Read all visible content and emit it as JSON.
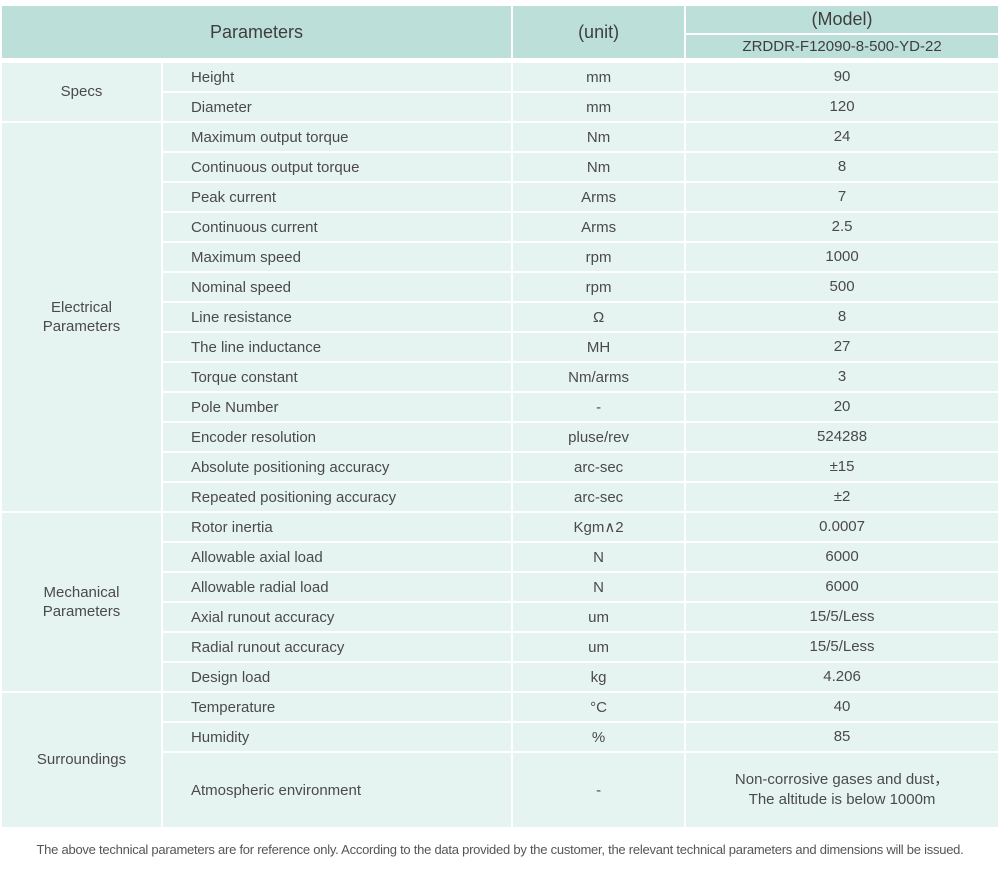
{
  "colors": {
    "header_bg": "#bce0d9",
    "row_bg": "#e6f4f1",
    "text": "#4a4a4a",
    "header_text": "#3e3e3e",
    "footnote_text": "#555555"
  },
  "table": {
    "header": {
      "parameters_label": "Parameters",
      "unit_label": "(unit)",
      "model_label": "(Model)",
      "model_value": "ZRDDR-F12090-8-500-YD-22"
    },
    "sections": [
      {
        "category": "Specs",
        "rows": [
          {
            "name": "Height",
            "unit": "mm",
            "value": "90"
          },
          {
            "name": "Diameter",
            "unit": "mm",
            "value": "120"
          }
        ]
      },
      {
        "category": "Electrical\nParameters",
        "rows": [
          {
            "name": "Maximum output torque",
            "unit": "Nm",
            "value": "24"
          },
          {
            "name": "Continuous output torque",
            "unit": "Nm",
            "value": "8"
          },
          {
            "name": "Peak current",
            "unit": "Arms",
            "value": "7"
          },
          {
            "name": "Continuous current",
            "unit": "Arms",
            "value": "2.5"
          },
          {
            "name": "Maximum speed",
            "unit": "rpm",
            "value": "1000"
          },
          {
            "name": "Nominal speed",
            "unit": "rpm",
            "value": "500"
          },
          {
            "name": "Line resistance",
            "unit": "Ω",
            "value": "8"
          },
          {
            "name": "The line inductance",
            "unit": "MH",
            "value": "27"
          },
          {
            "name": "Torque constant",
            "unit": "Nm/arms",
            "value": "3"
          },
          {
            "name": "Pole Number",
            "unit": "-",
            "value": "20"
          },
          {
            "name": "Encoder resolution",
            "unit": "pluse/rev",
            "value": "524288"
          },
          {
            "name": "Absolute positioning accuracy",
            "unit": "arc-sec",
            "value": "±15"
          },
          {
            "name": "Repeated positioning accuracy",
            "unit": "arc-sec",
            "value": "±2"
          }
        ]
      },
      {
        "category": "Mechanical\nParameters",
        "rows": [
          {
            "name": "Rotor inertia",
            "unit": "Kgm∧2",
            "value": "0.0007"
          },
          {
            "name": "Allowable axial load",
            "unit": "N",
            "value": "6000"
          },
          {
            "name": "Allowable radial load",
            "unit": "N",
            "value": "6000"
          },
          {
            "name": "Axial runout accuracy",
            "unit": "um",
            "value": "15/5/Less"
          },
          {
            "name": "Radial runout accuracy",
            "unit": "um",
            "value": "15/5/Less"
          },
          {
            "name": "Design load",
            "unit": "kg",
            "value": "4.206"
          }
        ]
      },
      {
        "category": "Surroundings",
        "rows": [
          {
            "name": "Temperature",
            "unit": "°C",
            "value": "40"
          },
          {
            "name": "Humidity",
            "unit": "%",
            "value": "85"
          },
          {
            "name": "Atmospheric environment",
            "unit": "-",
            "value": "Non-corrosive gases and dust，\nThe altitude is below 1000m"
          }
        ]
      }
    ],
    "footnote": "The above technical parameters are for reference only. According to the data provided by the customer, the relevant technical parameters and dimensions will be issued."
  }
}
